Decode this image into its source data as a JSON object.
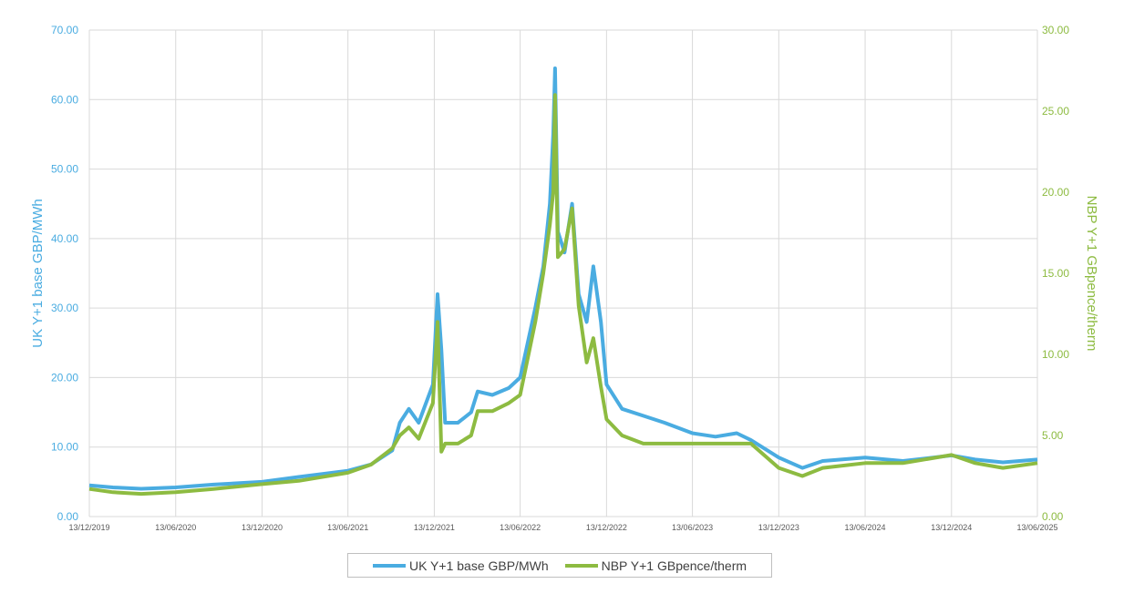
{
  "chart_data": {
    "type": "line",
    "grid": true,
    "legend_position": "bottom",
    "y_left": {
      "label": "UK Y+1 base GBP/MWh",
      "lim": [
        0,
        70
      ],
      "ticks": [
        "0.00",
        "10.00",
        "20.00",
        "30.00",
        "40.00",
        "50.00",
        "60.00",
        "70.00"
      ],
      "color": "#4aace1"
    },
    "y_right": {
      "label": "NBP Y+1 GBpence/therm",
      "lim": [
        0,
        30
      ],
      "ticks": [
        "0.00",
        "5.00",
        "10.00",
        "15.00",
        "20.00",
        "25.00",
        "30.00"
      ],
      "color": "#8dbb41"
    },
    "x": {
      "start": "2019-12-13",
      "end": "2025-06-13",
      "ticks": [
        "13/12/2019",
        "13/06/2020",
        "13/12/2020",
        "13/06/2021",
        "13/12/2021",
        "13/06/2022",
        "13/12/2022",
        "13/06/2023",
        "13/12/2023",
        "13/06/2024",
        "13/12/2024",
        "13/06/2025"
      ]
    },
    "series": [
      {
        "name": "UK Y+1 base GBP/MWh",
        "axis": "left",
        "color": "#4aace1",
        "x": [
          "2019-12-13",
          "2020-02-01",
          "2020-04-01",
          "2020-06-13",
          "2020-09-01",
          "2020-12-13",
          "2021-03-01",
          "2021-06-13",
          "2021-08-01",
          "2021-09-15",
          "2021-10-01",
          "2021-10-20",
          "2021-11-10",
          "2021-12-10",
          "2021-12-20",
          "2021-12-28",
          "2022-01-05",
          "2022-02-01",
          "2022-03-01",
          "2022-03-15",
          "2022-04-15",
          "2022-05-20",
          "2022-06-13",
          "2022-07-15",
          "2022-08-01",
          "2022-08-15",
          "2022-08-22",
          "2022-08-26",
          "2022-09-01",
          "2022-09-15",
          "2022-10-01",
          "2022-10-15",
          "2022-11-01",
          "2022-11-15",
          "2022-12-01",
          "2022-12-13",
          "2023-01-15",
          "2023-03-01",
          "2023-04-15",
          "2023-06-13",
          "2023-08-01",
          "2023-09-15",
          "2023-10-15",
          "2023-12-13",
          "2024-02-01",
          "2024-03-15",
          "2024-06-13",
          "2024-09-01",
          "2024-12-13",
          "2025-02-01",
          "2025-04-01",
          "2025-06-13"
        ],
        "values": [
          4.5,
          4.2,
          4.0,
          4.2,
          4.6,
          5.0,
          5.7,
          6.6,
          7.5,
          9.5,
          13.5,
          15.5,
          13.5,
          19.0,
          32.0,
          24.0,
          13.5,
          13.5,
          15.0,
          18.0,
          17.5,
          18.5,
          20.0,
          30.0,
          36.0,
          45.0,
          55.0,
          64.5,
          41.0,
          38.0,
          45.0,
          32.0,
          28.0,
          36.0,
          28.0,
          19.0,
          15.5,
          14.5,
          13.5,
          12.0,
          11.5,
          12.0,
          11.0,
          8.5,
          7.0,
          8.0,
          8.5,
          8.0,
          8.8,
          8.2,
          7.8,
          8.2
        ]
      },
      {
        "name": "NBP Y+1 GBpence/therm",
        "axis": "right",
        "color": "#8dbb41",
        "x": [
          "2019-12-13",
          "2020-02-01",
          "2020-04-01",
          "2020-06-13",
          "2020-09-01",
          "2020-12-13",
          "2021-03-01",
          "2021-06-13",
          "2021-08-01",
          "2021-09-15",
          "2021-10-01",
          "2021-10-20",
          "2021-11-10",
          "2021-12-10",
          "2021-12-20",
          "2021-12-28",
          "2022-01-05",
          "2022-02-01",
          "2022-03-01",
          "2022-03-15",
          "2022-04-15",
          "2022-05-20",
          "2022-06-13",
          "2022-07-15",
          "2022-08-01",
          "2022-08-15",
          "2022-08-22",
          "2022-08-26",
          "2022-09-01",
          "2022-09-15",
          "2022-10-01",
          "2022-10-15",
          "2022-11-01",
          "2022-11-15",
          "2022-12-01",
          "2022-12-13",
          "2023-01-15",
          "2023-03-01",
          "2023-04-15",
          "2023-06-13",
          "2023-08-01",
          "2023-09-15",
          "2023-10-15",
          "2023-12-13",
          "2024-02-01",
          "2024-03-15",
          "2024-06-13",
          "2024-09-01",
          "2024-12-13",
          "2025-02-01",
          "2025-04-01",
          "2025-06-13"
        ],
        "values": [
          1.7,
          1.5,
          1.4,
          1.5,
          1.7,
          2.0,
          2.2,
          2.7,
          3.2,
          4.2,
          5.0,
          5.5,
          4.8,
          7.0,
          12.0,
          4.0,
          4.5,
          4.5,
          5.0,
          6.5,
          6.5,
          7.0,
          7.5,
          12.0,
          15.0,
          18.0,
          20.0,
          26.0,
          16.0,
          16.5,
          19.0,
          13.0,
          9.5,
          11.0,
          8.0,
          6.0,
          5.0,
          4.5,
          4.5,
          4.5,
          4.5,
          4.5,
          4.5,
          3.0,
          2.5,
          3.0,
          3.3,
          3.3,
          3.8,
          3.3,
          3.0,
          3.3
        ]
      }
    ]
  }
}
